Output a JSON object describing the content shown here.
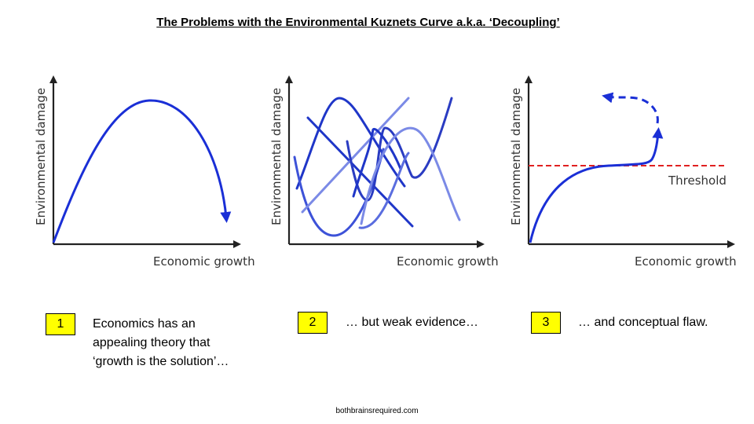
{
  "title": "The Problems with the Environmental Kuznets Curve a.k.a. ‘Decoupling’",
  "panels": [
    {
      "badge": "1",
      "ylabel": "Environmental damage",
      "xlabel": "Economic growth",
      "caption_lines": [
        "Economics has an",
        "appealing theory that",
        "‘growth is the solution’…"
      ]
    },
    {
      "badge": "2",
      "ylabel": "Environmental damage",
      "xlabel": "Economic growth",
      "caption": "… but weak evidence…"
    },
    {
      "badge": "3",
      "ylabel": "Environmental damage",
      "xlabel": "Economic growth",
      "threshold_label": "Threshold",
      "caption": "… and conceptual flaw."
    }
  ],
  "colors": {
    "curve": "#1a2fd6",
    "threshold": "#e02020",
    "badge": "#ffff00"
  },
  "footer": "bothbrainsrequired.com"
}
